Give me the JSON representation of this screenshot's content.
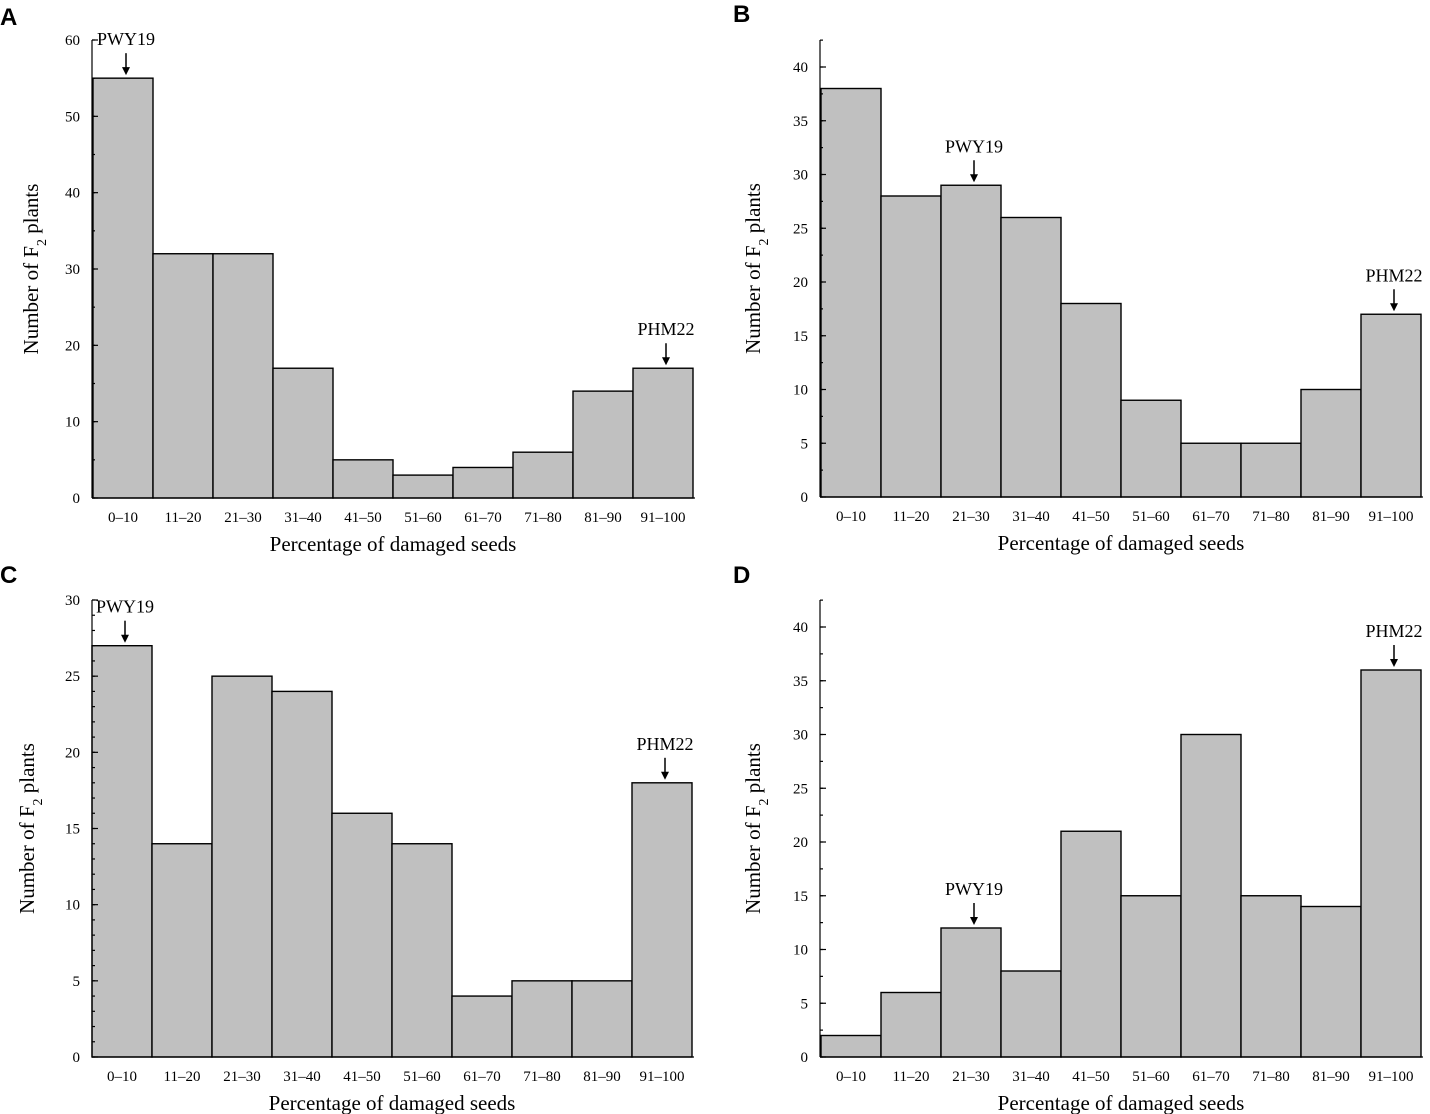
{
  "figure": {
    "panels": [
      {
        "letter": "A",
        "title_y": "Number of F",
        "title_y_sub": "2",
        "title_y_end": " plants",
        "xlabel": "Percentage of damaged seeds",
        "annotations": [
          {
            "text": "PWY19",
            "category_index": 0
          },
          {
            "text": "PHM22",
            "category_index": 9
          }
        ]
      },
      {
        "letter": "B",
        "title_y": "Number of F",
        "title_y_sub": "2",
        "title_y_end": " plants",
        "xlabel": "Percentage of damaged seeds",
        "annotations": [
          {
            "text": "PWY19",
            "category_index": 2
          },
          {
            "text": "PHM22",
            "category_index": 9
          }
        ]
      },
      {
        "letter": "C",
        "title_y": "Number of F",
        "title_y_sub": "2",
        "title_y_end": " plants",
        "xlabel": "Percentage of damaged seeds",
        "annotations": [
          {
            "text": "PWY19",
            "category_index": 0
          },
          {
            "text": "PHM22",
            "category_index": 9
          }
        ]
      },
      {
        "letter": "D",
        "title_y": "Number of F",
        "title_y_sub": "2",
        "title_y_end": " plants",
        "xlabel": "Percentage of damaged seeds",
        "annotations": [
          {
            "text": "PWY19",
            "category_index": 2
          },
          {
            "text": "PHM22",
            "category_index": 9
          }
        ]
      }
    ]
  },
  "chart_data": [
    {
      "type": "bar",
      "panel": "A",
      "categories": [
        "0–10",
        "11–20",
        "21–30",
        "31–40",
        "41–50",
        "51–60",
        "61–70",
        "71–80",
        "81–90",
        "91–100"
      ],
      "values": [
        55,
        32,
        32,
        17,
        5,
        3,
        4,
        6,
        14,
        17
      ],
      "xlabel": "Percentage of damaged seeds",
      "ylabel": "Number of F2 plants",
      "ylim": [
        0,
        60
      ],
      "yticks": [
        0,
        10,
        20,
        30,
        40,
        50,
        60
      ],
      "minor_step": 5
    },
    {
      "type": "bar",
      "panel": "B",
      "categories": [
        "0–10",
        "11–20",
        "21–30",
        "31–40",
        "41–50",
        "51–60",
        "61–70",
        "71–80",
        "81–90",
        "91–100"
      ],
      "values": [
        38,
        28,
        29,
        26,
        18,
        9,
        5,
        5,
        10,
        17
      ],
      "xlabel": "Percentage of damaged seeds",
      "ylabel": "Number of F2 plants",
      "ylim": [
        0,
        42.5
      ],
      "yticks": [
        0,
        5,
        10,
        15,
        20,
        25,
        30,
        35,
        40
      ],
      "minor_step": 2.5
    },
    {
      "type": "bar",
      "panel": "C",
      "categories": [
        "0–10",
        "11–20",
        "21–30",
        "31–40",
        "41–50",
        "51–60",
        "61–70",
        "71–80",
        "81–90",
        "91–100"
      ],
      "values": [
        27,
        14,
        25,
        24,
        16,
        14,
        4,
        5,
        5,
        18
      ],
      "xlabel": "Percentage of damaged seeds",
      "ylabel": "Number of F2 plants",
      "ylim": [
        0,
        30
      ],
      "yticks": [
        0,
        5,
        10,
        15,
        20,
        25,
        30
      ],
      "minor_step": 1
    },
    {
      "type": "bar",
      "panel": "D",
      "categories": [
        "0–10",
        "11–20",
        "21–30",
        "31–40",
        "41–50",
        "51–60",
        "61–70",
        "71–80",
        "81–90",
        "91–100"
      ],
      "values": [
        2,
        6,
        12,
        8,
        21,
        15,
        30,
        15,
        14,
        36
      ],
      "xlabel": "Percentage of damaged seeds",
      "ylabel": "Number of F2 plants",
      "ylim": [
        0,
        42.5
      ],
      "yticks": [
        0,
        5,
        10,
        15,
        20,
        25,
        30,
        35,
        40
      ],
      "minor_step": 2.5
    }
  ]
}
